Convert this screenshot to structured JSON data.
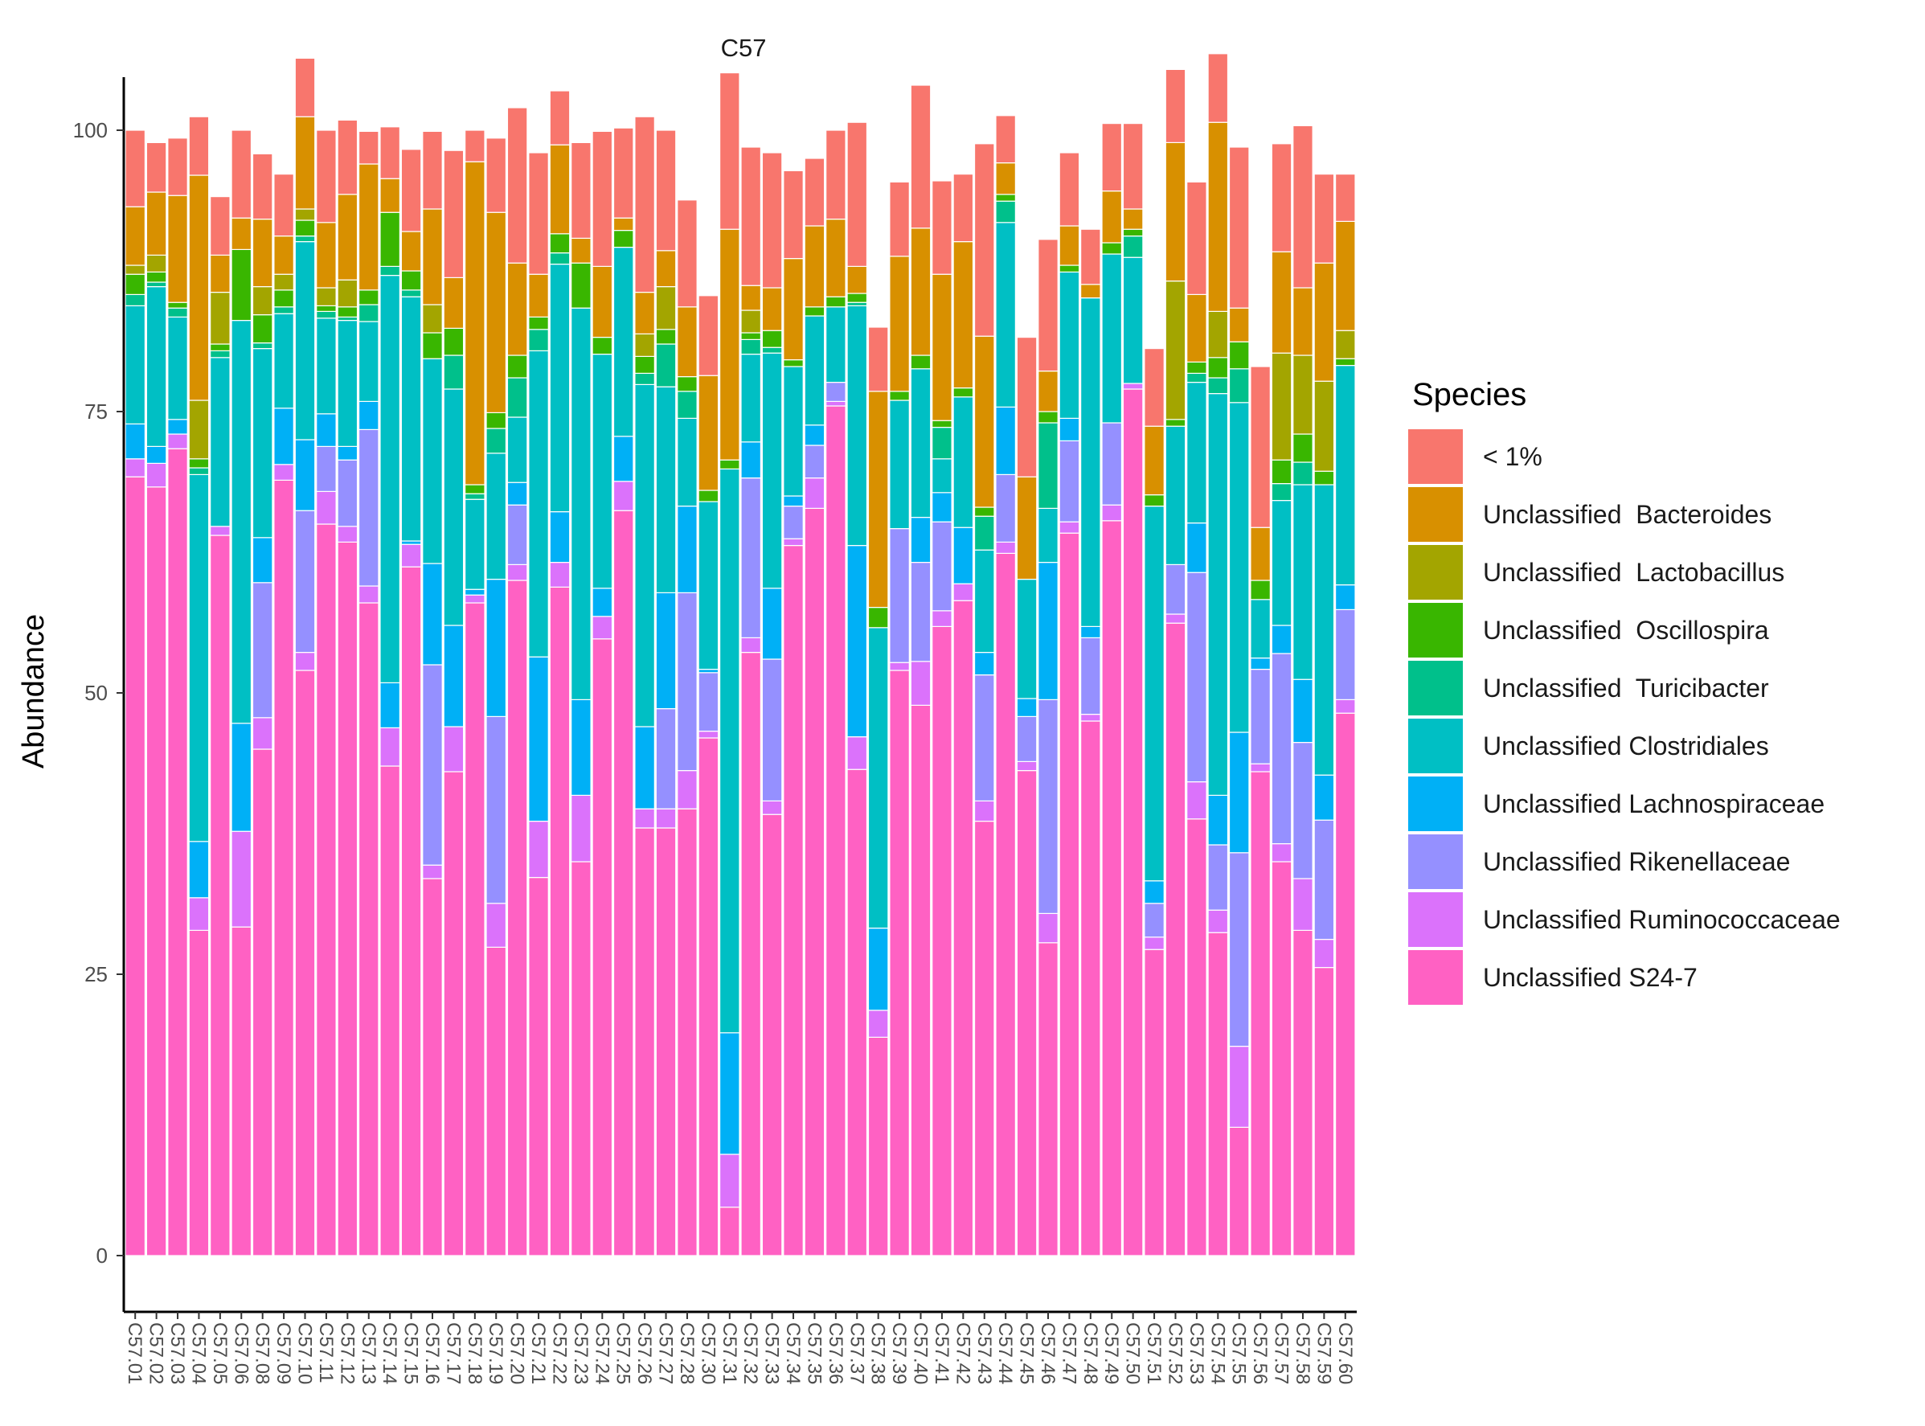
{
  "chart_data": {
    "type": "bar",
    "stacked": true,
    "title": "C57",
    "xlabel": "",
    "ylabel": "Abundance",
    "ylim": [
      0,
      100
    ],
    "yticks": [
      0,
      25,
      50,
      75,
      100
    ],
    "grid": false,
    "legend_position": "right",
    "legend_title": "Species",
    "categories": [
      "C57.01",
      "C57.02",
      "C57.03",
      "C57.04",
      "C57.05",
      "C57.06",
      "C57.08",
      "C57.09",
      "C57.10",
      "C57.11",
      "C57.12",
      "C57.13",
      "C57.14",
      "C57.15",
      "C57.16",
      "C57.17",
      "C57.18",
      "C57.19",
      "C57.20",
      "C57.21",
      "C57.22",
      "C57.23",
      "C57.24",
      "C57.25",
      "C57.26",
      "C57.27",
      "C57.28",
      "C57.30",
      "C57.31",
      "C57.32",
      "C57.33",
      "C57.34",
      "C57.35",
      "C57.36",
      "C57.37",
      "C57.38",
      "C57.39",
      "C57.40",
      "C57.41",
      "C57.42",
      "C57.43",
      "C57.44",
      "C57.45",
      "C57.46",
      "C57.47",
      "C57.48",
      "C57.49",
      "C57.50",
      "C57.51",
      "C57.52",
      "C57.53",
      "C57.54",
      "C57.55",
      "C57.56",
      "C57.57",
      "C57.58",
      "C57.59",
      "C57.60"
    ],
    "series": [
      {
        "name": "Unclassified S24-7",
        "color": "#FF61C3",
        "values": [
          69.2,
          68.3,
          71.7,
          28.9,
          64.0,
          29.2,
          45.0,
          68.9,
          52.0,
          65.0,
          63.4,
          58.0,
          43.5,
          61.2,
          33.5,
          43.0,
          58.0,
          27.4,
          60.0,
          33.6,
          59.4,
          35.0,
          54.8,
          66.2,
          38.0,
          38.0,
          39.7,
          46.0,
          4.3,
          53.6,
          39.2,
          63.1,
          66.4,
          75.5,
          43.2,
          19.4,
          52.0,
          48.9,
          55.9,
          58.2,
          38.6,
          62.4,
          43.1,
          27.8,
          64.2,
          47.5,
          65.3,
          77.0,
          27.2,
          56.2,
          38.8,
          28.7,
          11.4,
          43.0,
          35.0,
          28.9,
          25.6,
          48.2
        ]
      },
      {
        "name": "Unclassified Ruminococcaceae",
        "color": "#DB72FB",
        "values": [
          1.6,
          2.1,
          1.3,
          2.9,
          0.8,
          8.5,
          2.8,
          1.4,
          1.6,
          2.9,
          1.4,
          1.5,
          3.4,
          2.0,
          1.2,
          4.0,
          0.7,
          3.9,
          1.4,
          5.0,
          2.2,
          5.9,
          2.0,
          2.6,
          1.7,
          1.7,
          3.4,
          0.6,
          4.7,
          1.3,
          1.2,
          0.6,
          2.7,
          0.4,
          2.9,
          2.4,
          0.7,
          3.9,
          1.4,
          1.5,
          1.8,
          1.0,
          0.8,
          2.6,
          1.0,
          0.6,
          1.4,
          0.5,
          1.1,
          0.8,
          3.3,
          2.0,
          7.2,
          0.7,
          1.6,
          4.6,
          2.5,
          1.2
        ]
      },
      {
        "name": "Unclassified Rikenellaceae",
        "color": "#9590FF",
        "values": [
          0,
          0,
          0,
          0,
          0,
          0,
          12.0,
          0,
          12.6,
          4.0,
          5.9,
          13.9,
          0,
          0,
          17.8,
          0,
          0,
          16.6,
          5.3,
          0,
          0,
          0,
          0,
          0,
          0,
          8.9,
          15.8,
          5.2,
          0,
          14.2,
          12.6,
          2.9,
          2.9,
          1.7,
          0,
          0,
          11.9,
          8.8,
          7.9,
          0,
          11.2,
          6.0,
          4.0,
          19.0,
          7.2,
          6.8,
          7.3,
          0,
          3.0,
          4.4,
          18.6,
          5.8,
          17.2,
          8.4,
          16.9,
          12.1,
          10.6,
          8.0
        ]
      },
      {
        "name": "Unclassified Lachnospiraceae",
        "color": "#00B0F6",
        "values": [
          3.1,
          1.5,
          1.3,
          5.0,
          0.0,
          9.6,
          4.0,
          5.0,
          6.3,
          2.9,
          1.2,
          2.5,
          4.0,
          0.3,
          9.0,
          9.0,
          0.5,
          12.2,
          2.0,
          14.6,
          4.5,
          8.5,
          2.5,
          4.0,
          7.3,
          10.3,
          7.7,
          0.3,
          10.8,
          3.2,
          6.3,
          0.9,
          1.8,
          0,
          17.0,
          7.3,
          0,
          4.0,
          2.6,
          5.0,
          2.0,
          6.0,
          1.6,
          12.2,
          2.0,
          1.0,
          0,
          0,
          2.0,
          0,
          4.4,
          4.4,
          10.7,
          1.0,
          2.5,
          5.6,
          4.0,
          2.2
        ]
      },
      {
        "name": "Unclassified Clostridiales",
        "color": "#00BFC4",
        "values": [
          10.5,
          14.2,
          9.1,
          32.6,
          15.0,
          35.8,
          16.8,
          8.4,
          17.6,
          8.5,
          11.2,
          7.1,
          36.2,
          21.7,
          18.2,
          21.0,
          8.0,
          11.2,
          5.8,
          27.2,
          22.0,
          34.8,
          20.8,
          16.8,
          30.4,
          18.3,
          7.8,
          14.9,
          50.1,
          7.8,
          20.9,
          11.5,
          9.7,
          6.7,
          21.3,
          26.7,
          11.4,
          13.2,
          3.0,
          11.6,
          9.1,
          16.4,
          10.6,
          4.8,
          13.0,
          29.2,
          15.0,
          11.2,
          33.3,
          12.3,
          12.5,
          35.7,
          29.3,
          5.2,
          11.1,
          17.3,
          25.8,
          19.5
        ]
      },
      {
        "name": "Unclassified  Turicibacter",
        "color": "#00C08B",
        "values": [
          1.0,
          0.4,
          0.8,
          0.6,
          0.6,
          0.0,
          0.5,
          0.6,
          0.5,
          0.6,
          0.3,
          1.5,
          0.8,
          0.6,
          0.0,
          3.0,
          0.5,
          2.2,
          3.5,
          1.9,
          1.0,
          0.0,
          0.0,
          0.0,
          1.0,
          3.8,
          2.4,
          0.0,
          0.0,
          1.3,
          0.5,
          0.0,
          0.0,
          0.0,
          0.3,
          0.0,
          0.0,
          0.0,
          2.8,
          0.0,
          3.0,
          1.9,
          0.0,
          7.6,
          0.0,
          0.0,
          0.0,
          1.9,
          0.0,
          0.0,
          0.8,
          1.4,
          3.0,
          0.0,
          1.5,
          2.0,
          0.0,
          0.0
        ]
      },
      {
        "name": "Unclassified  Oscillospira",
        "color": "#39B600",
        "values": [
          1.8,
          0.9,
          0.5,
          0.8,
          0.6,
          6.3,
          2.5,
          1.5,
          1.4,
          0.5,
          0.9,
          1.3,
          4.8,
          1.7,
          2.3,
          2.4,
          0.8,
          1.4,
          2.0,
          1.1,
          1.7,
          4.0,
          1.5,
          1.5,
          1.5,
          1.3,
          1.3,
          1.0,
          0.8,
          0.6,
          1.5,
          0.6,
          0.8,
          0.9,
          0.8,
          1.8,
          0.8,
          1.2,
          0.6,
          0.8,
          0.8,
          0.6,
          0.0,
          1.0,
          0.6,
          0.0,
          1.0,
          0.6,
          1.0,
          0.6,
          1.0,
          1.8,
          2.4,
          1.7,
          2.1,
          2.5,
          1.2,
          0.6
        ]
      },
      {
        "name": "Unclassified  Lactobacillus",
        "color": "#A3A500",
        "values": [
          0.8,
          1.5,
          0,
          5.2,
          4.6,
          0,
          2.5,
          1.4,
          1.0,
          1.6,
          2.4,
          0,
          0,
          0,
          2.5,
          0,
          0,
          0,
          0,
          0,
          0,
          0,
          0,
          0,
          2.0,
          3.8,
          0,
          0,
          0,
          2.0,
          0,
          0,
          0,
          0,
          0,
          0,
          0,
          0,
          0,
          0,
          0,
          0,
          0,
          0,
          0,
          0,
          0,
          0,
          0,
          12.3,
          0,
          4.1,
          0,
          0,
          9.5,
          7.0,
          8.0,
          2.5
        ]
      },
      {
        "name": "Unclassified  Bacteroides",
        "color": "#D89000",
        "values": [
          5.2,
          5.6,
          9.5,
          20.0,
          3.3,
          2.8,
          6.0,
          3.4,
          8.2,
          5.8,
          7.6,
          11.2,
          3.0,
          3.5,
          8.5,
          4.5,
          28.7,
          17.8,
          8.2,
          3.8,
          7.9,
          2.2,
          6.3,
          1.1,
          3.7,
          3.2,
          6.2,
          10.2,
          20.5,
          2.2,
          3.8,
          9.0,
          7.2,
          6.9,
          2.4,
          19.2,
          12.0,
          11.3,
          13.0,
          13.0,
          15.2,
          2.8,
          9.1,
          3.6,
          3.5,
          1.2,
          4.6,
          1.8,
          6.1,
          12.3,
          6.0,
          16.8,
          3.0,
          4.7,
          9.0,
          6.0,
          10.5,
          9.7
        ]
      },
      {
        "name": "< 1%",
        "color": "#F8766D",
        "values": [
          6.8,
          4.4,
          5.1,
          5.2,
          5.2,
          7.8,
          5.8,
          5.5,
          5.2,
          8.2,
          6.6,
          2.9,
          4.6,
          7.3,
          6.9,
          11.3,
          2.8,
          6.6,
          13.8,
          10.8,
          4.8,
          8.5,
          12.0,
          8.0,
          15.6,
          10.7,
          9.5,
          7.1,
          13.9,
          12.3,
          12.0,
          7.8,
          6.0,
          7.9,
          12.8,
          5.7,
          6.6,
          12.7,
          8.3,
          6.0,
          17.1,
          4.2,
          12.4,
          11.7,
          6.5,
          4.9,
          6.0,
          7.6,
          6.9,
          6.5,
          10.0,
          6.1,
          14.3,
          14.3,
          9.6,
          14.4,
          7.9,
          4.2
        ]
      }
    ]
  }
}
